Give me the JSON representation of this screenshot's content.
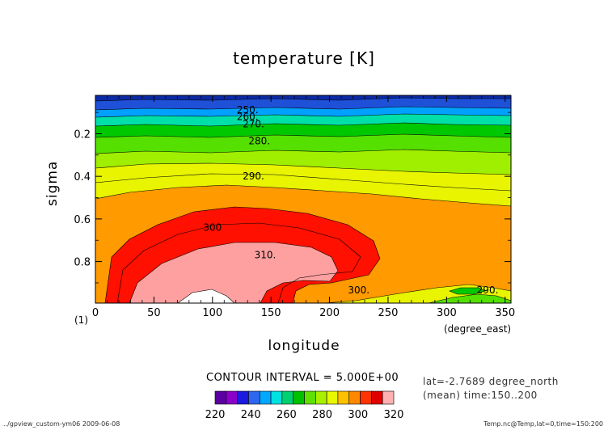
{
  "chart_data": {
    "type": "contour",
    "title": "temperature [K]",
    "xlabel": "longitude",
    "xunit": "(degree_east)",
    "ylabel": "sigma",
    "y_index_label": "(1)",
    "xlim": [
      0,
      355
    ],
    "ylim": [
      0.02,
      0.995
    ],
    "y_inverted": true,
    "x_ticks": [
      "0",
      "50",
      "100",
      "150",
      "200",
      "250",
      "300",
      "350"
    ],
    "x_tick_values": [
      0,
      50,
      100,
      150,
      200,
      250,
      300,
      350
    ],
    "y_ticks": [
      "0.2",
      "0.4",
      "0.6",
      "0.8"
    ],
    "y_tick_values": [
      0.2,
      0.4,
      0.6,
      0.8
    ],
    "contour_labels": [
      {
        "text": "250.",
        "x": 130,
        "y": 0.088
      },
      {
        "text": "260.",
        "x": 130,
        "y": 0.12
      },
      {
        "text": "270.",
        "x": 135,
        "y": 0.155
      },
      {
        "text": "280.",
        "x": 140,
        "y": 0.235
      },
      {
        "text": "290.",
        "x": 135,
        "y": 0.4
      },
      {
        "text": "300",
        "x": 100,
        "y": 0.64
      },
      {
        "text": "310.",
        "x": 145,
        "y": 0.77
      },
      {
        "text": "300.",
        "x": 225,
        "y": 0.935
      },
      {
        "text": "290.",
        "x": 335,
        "y": 0.935
      }
    ],
    "levels": [
      220,
      225,
      230,
      235,
      240,
      245,
      250,
      255,
      260,
      265,
      270,
      275,
      280,
      285,
      290,
      295,
      300,
      305,
      310,
      315,
      320
    ],
    "colorbar_ticks": [
      "220",
      "240",
      "260",
      "280",
      "300",
      "320"
    ],
    "contour_interval_text": "CONTOUR INTERVAL = 5.000E+00"
  },
  "info": {
    "lat": "lat=-2.7689 degree_north",
    "mean": "(mean) time:150..200"
  },
  "footer": {
    "left": "../gpview_custom-ym06  2009-06-08",
    "right": "Temp.nc@Temp,lat=0,time=150:200"
  },
  "colors": {
    "c_below": "#0b2aa6",
    "c245": "#1e50d8",
    "c255": "#00a0ff",
    "c265": "#00dfa8",
    "c270": "#00c800",
    "c275": "#55e000",
    "c280": "#a0ee00",
    "c285": "#e8f400",
    "c290": "#ff9a00",
    "c300": "#ff1000",
    "c310": "#ffa0a0",
    "c320": "#ffffff",
    "colorbar": [
      "#5a00a0",
      "#8a00c8",
      "#1a1ae0",
      "#2f66f0",
      "#00a8ff",
      "#00e0e0",
      "#00d070",
      "#00c000",
      "#60e000",
      "#a8f000",
      "#e8f800",
      "#ffc000",
      "#ff8800",
      "#ff3300",
      "#e00000",
      "#ffb0b0"
    ]
  }
}
